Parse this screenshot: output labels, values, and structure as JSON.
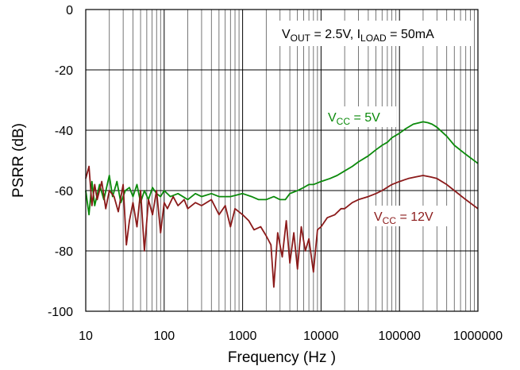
{
  "chart_data": {
    "type": "line",
    "xlabel": "Frequency (Hz )",
    "ylabel": "PSRR (dB)",
    "xscale": "log",
    "xlim": [
      10,
      1000000
    ],
    "ylim": [
      -100,
      0
    ],
    "grid": true,
    "x_ticks": [
      10,
      100,
      1000,
      10000,
      100000,
      1000000
    ],
    "x_tick_labels": [
      "10",
      "100",
      "1000",
      "10000",
      "100000",
      "1000000"
    ],
    "y_ticks": [
      0,
      -20,
      -40,
      -60,
      -80,
      -100
    ],
    "y_tick_labels": [
      "0",
      "-20",
      "-40",
      "-60",
      "-80",
      "-100"
    ],
    "annotation": {
      "parts": [
        "V",
        "OUT",
        " = 2.5V, I",
        "LOAD",
        " = 50mA"
      ]
    },
    "series": [
      {
        "name": "Vcc = 5V",
        "label_parts": [
          "V",
          "CC",
          " = 5V"
        ],
        "color": "#0b8a0b",
        "x": [
          10,
          11,
          12,
          13,
          15,
          17,
          20,
          22,
          25,
          28,
          32,
          36,
          40,
          45,
          50,
          56,
          63,
          71,
          80,
          90,
          100,
          120,
          150,
          200,
          250,
          300,
          400,
          500,
          700,
          1000,
          1300,
          1600,
          2000,
          2500,
          3000,
          3500,
          4000,
          5000,
          6000,
          7000,
          8000,
          10000,
          13000,
          16000,
          20000,
          25000,
          30000,
          40000,
          50000,
          60000,
          70000,
          80000,
          100000,
          120000,
          150000,
          180000,
          200000,
          230000,
          260000,
          300000,
          400000,
          500000,
          700000,
          1000000
        ],
        "values": [
          -60,
          -68,
          -57,
          -65,
          -58,
          -63,
          -55,
          -62,
          -57,
          -64,
          -60,
          -59,
          -62,
          -58,
          -64,
          -60,
          -63,
          -59,
          -61,
          -62,
          -60,
          -62,
          -61,
          -63,
          -61,
          -62,
          -61,
          -62,
          -62,
          -61,
          -62,
          -63,
          -63,
          -62,
          -63,
          -63,
          -61,
          -60,
          -59,
          -58,
          -58,
          -57,
          -56,
          -55,
          -53.5,
          -52,
          -50.5,
          -48.5,
          -46.5,
          -45,
          -44,
          -42.5,
          -41,
          -39.5,
          -38,
          -37.5,
          -37.2,
          -37.5,
          -38,
          -39,
          -42,
          -45,
          -48,
          -51
        ]
      },
      {
        "name": "Vcc = 12V",
        "label_parts": [
          "V",
          "CC",
          " = 12V"
        ],
        "color": "#8b1a1a",
        "x": [
          10,
          11,
          12,
          13,
          14,
          16,
          18,
          20,
          23,
          26,
          30,
          33,
          36,
          40,
          45,
          50,
          56,
          63,
          71,
          80,
          90,
          100,
          110,
          130,
          150,
          180,
          200,
          250,
          300,
          400,
          500,
          600,
          700,
          800,
          1000,
          1200,
          1400,
          1700,
          2000,
          2300,
          2500,
          2800,
          3200,
          3600,
          4000,
          4500,
          5000,
          5600,
          6300,
          7000,
          8000,
          9000,
          10000,
          12000,
          15000,
          18000,
          20000,
          25000,
          30000,
          40000,
          50000,
          60000,
          80000,
          100000,
          130000,
          160000,
          200000,
          250000,
          300000,
          400000,
          500000,
          700000,
          1000000
        ],
        "values": [
          -56,
          -52,
          -65,
          -58,
          -63,
          -57,
          -66,
          -60,
          -62,
          -67,
          -58,
          -78,
          -70,
          -64,
          -72,
          -60,
          -80,
          -63,
          -68,
          -60,
          -74,
          -64,
          -66,
          -62,
          -65,
          -63,
          -66,
          -64,
          -65,
          -63,
          -68,
          -65,
          -72,
          -66,
          -68,
          -70,
          -73,
          -72,
          -75,
          -78,
          -92,
          -74,
          -82,
          -70,
          -84,
          -74,
          -86,
          -72,
          -80,
          -76,
          -87,
          -73,
          -72,
          -69,
          -68,
          -66,
          -66,
          -64,
          -63,
          -62,
          -61,
          -60,
          -58,
          -57,
          -56,
          -55.5,
          -55,
          -55.5,
          -56,
          -58,
          -60,
          -63,
          -66
        ]
      }
    ]
  }
}
